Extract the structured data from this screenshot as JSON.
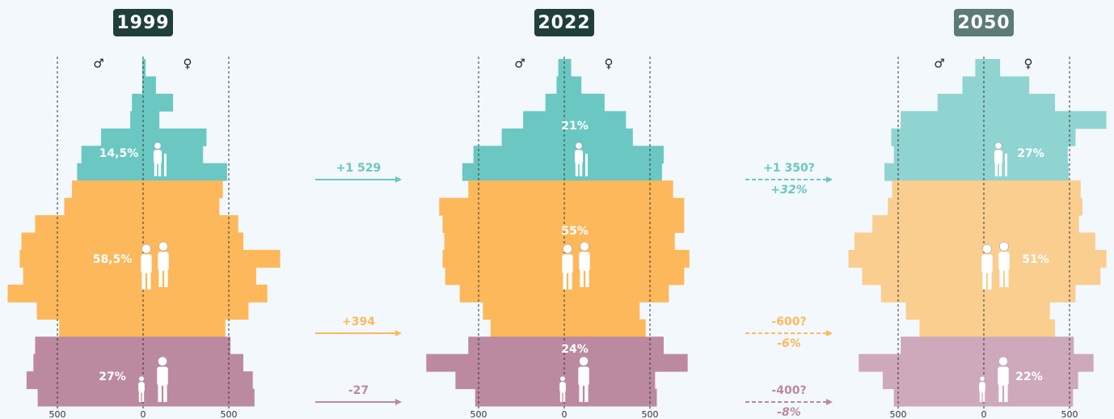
{
  "chart_data": [
    {
      "type": "pyramid",
      "title": "1999",
      "title_color": "#1f3f3a",
      "xlim": [
        -500,
        500
      ],
      "xticks": [
        {
          "value": -500,
          "label": "500"
        },
        0,
        500
      ],
      "series": [
        {
          "name": "♂",
          "values": [
            5,
            5,
            65,
            75,
            245,
            360,
            385,
            415,
            460,
            630,
            710,
            720,
            700,
            790,
            620,
            490,
            630,
            640,
            680,
            615
          ]
        },
        {
          "name": "♀",
          "values": [
            15,
            75,
            175,
            95,
            370,
            350,
            490,
            465,
            445,
            555,
            585,
            800,
            660,
            725,
            615,
            480,
            510,
            585,
            640,
            650
          ]
        }
      ],
      "groups": [
        {
          "label": "14,5%",
          "color": "#6ac7c1",
          "rows": 7
        },
        {
          "label": "58,5%",
          "color": "#fdb85c",
          "rows": 9
        },
        {
          "label": "27%",
          "color": "#bb8aa1",
          "rows": 4
        }
      ]
    },
    {
      "type": "pyramid",
      "title": "2022",
      "title_color": "#1f3f3a",
      "xlim": [
        -500,
        500
      ],
      "xticks": [
        {
          "value": -500,
          "label": "500"
        },
        0,
        500
      ],
      "series": [
        {
          "name": "♂",
          "values": [
            35,
            45,
            110,
            240,
            365,
            530,
            595,
            560,
            730,
            710,
            700,
            710,
            695,
            610,
            475,
            430,
            560,
            805,
            635,
            520
          ]
        },
        {
          "name": "♀",
          "values": [
            40,
            100,
            235,
            360,
            400,
            580,
            570,
            635,
            700,
            700,
            645,
            730,
            700,
            610,
            440,
            475,
            580,
            720,
            530,
            540
          ]
        }
      ],
      "groups": [
        {
          "label": "21%",
          "color": "#6ac7c1",
          "rows": 7
        },
        {
          "label": "55%",
          "color": "#fdb85c",
          "rows": 9
        },
        {
          "label": "24%",
          "color": "#bb8aa1",
          "rows": 4
        }
      ]
    },
    {
      "type": "pyramid",
      "title": "2050",
      "title_color": "#5b7b76",
      "xlim": [
        -500,
        500
      ],
      "xticks": [
        {
          "value": -500,
          "label": "500"
        },
        0,
        500
      ],
      "series": [
        {
          "name": "♂",
          "values": [
            50,
            125,
            270,
            485,
            540,
            525,
            580,
            535,
            560,
            650,
            755,
            790,
            710,
            600,
            455,
            375,
            485,
            730,
            590,
            525
          ]
        },
        {
          "name": "♀",
          "values": [
            95,
            265,
            415,
            715,
            535,
            490,
            495,
            565,
            575,
            555,
            650,
            715,
            680,
            535,
            385,
            415,
            525,
            640,
            550,
            520
          ]
        }
      ],
      "groups": [
        {
          "label": "27%",
          "color": "#8fd4d1",
          "rows": 7
        },
        {
          "label": "51%",
          "color": "#f9ce8f",
          "rows": 9
        },
        {
          "label": "22%",
          "color": "#cda9bb",
          "rows": 4
        }
      ]
    }
  ],
  "changes": [
    [
      {
        "text": "+1 529",
        "color": "#6ac7c1"
      },
      {
        "text": "+394",
        "color": "#fdb85c"
      },
      {
        "text": "-27",
        "color": "#bb8aa1"
      }
    ],
    [
      {
        "text": "+1 350?",
        "sub": "+32%",
        "color": "#6ac7c1"
      },
      {
        "text": "-600?",
        "sub": "-6%",
        "color": "#fdb85c"
      },
      {
        "text": "-400?",
        "sub": "-8%",
        "color": "#bb8aa1"
      }
    ]
  ]
}
